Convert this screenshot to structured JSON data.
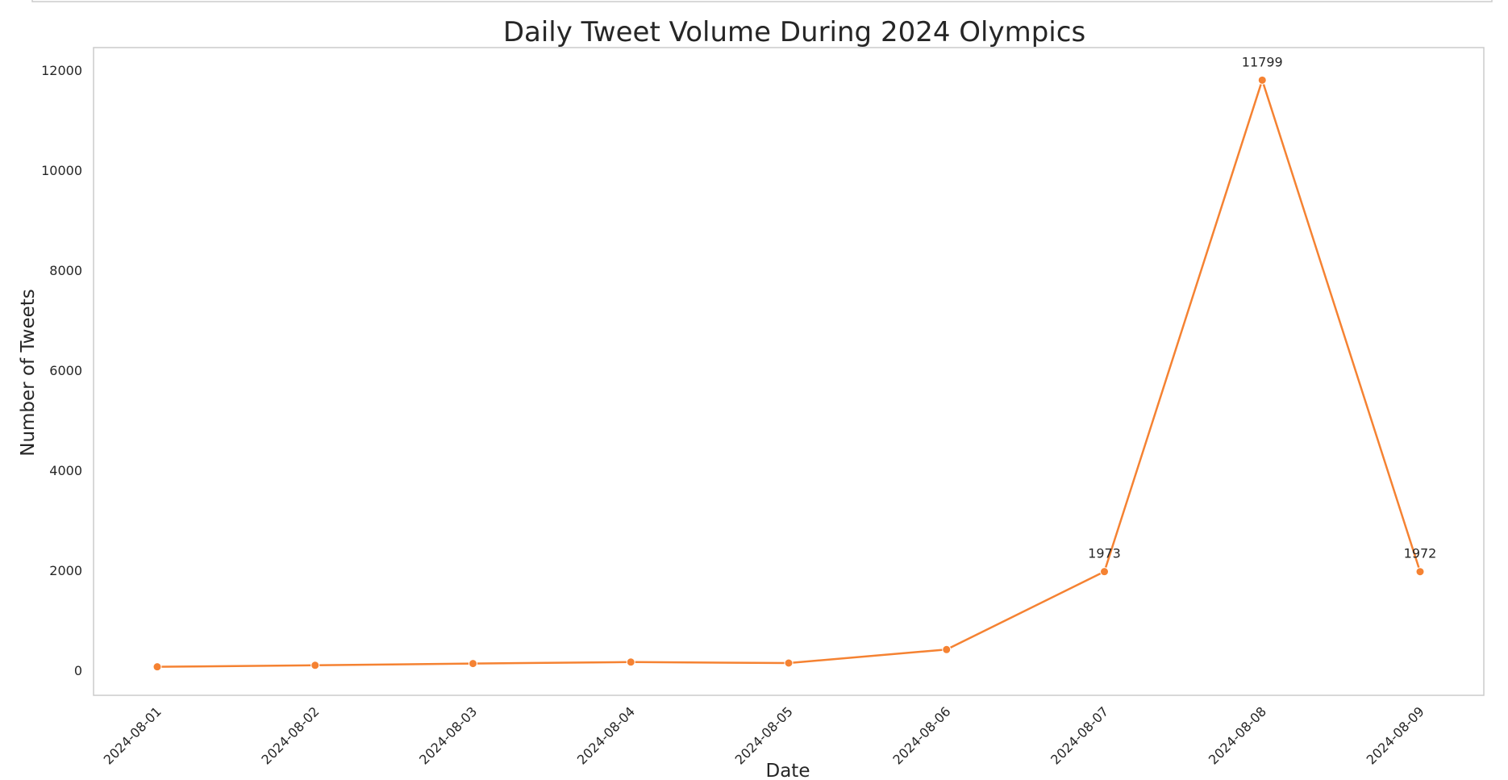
{
  "chart_data": {
    "type": "line",
    "title": "Daily Tweet Volume During 2024 Olympics",
    "xlabel": "Date",
    "ylabel": "Number of Tweets",
    "categories": [
      "2024-08-01",
      "2024-08-02",
      "2024-08-03",
      "2024-08-04",
      "2024-08-05",
      "2024-08-06",
      "2024-08-07",
      "2024-08-08",
      "2024-08-09"
    ],
    "values": [
      70,
      100,
      135,
      165,
      145,
      415,
      1973,
      11799,
      1972
    ],
    "data_labels": [
      {
        "index": 6,
        "text": "1973"
      },
      {
        "index": 7,
        "text": "11799"
      },
      {
        "index": 8,
        "text": "1972"
      }
    ],
    "ylim": [
      -500,
      12450
    ],
    "yticks": [
      0,
      2000,
      4000,
      6000,
      8000,
      10000,
      12000
    ],
    "grid": false,
    "line_color": "#f58232",
    "frame_color": "#cccccc"
  }
}
